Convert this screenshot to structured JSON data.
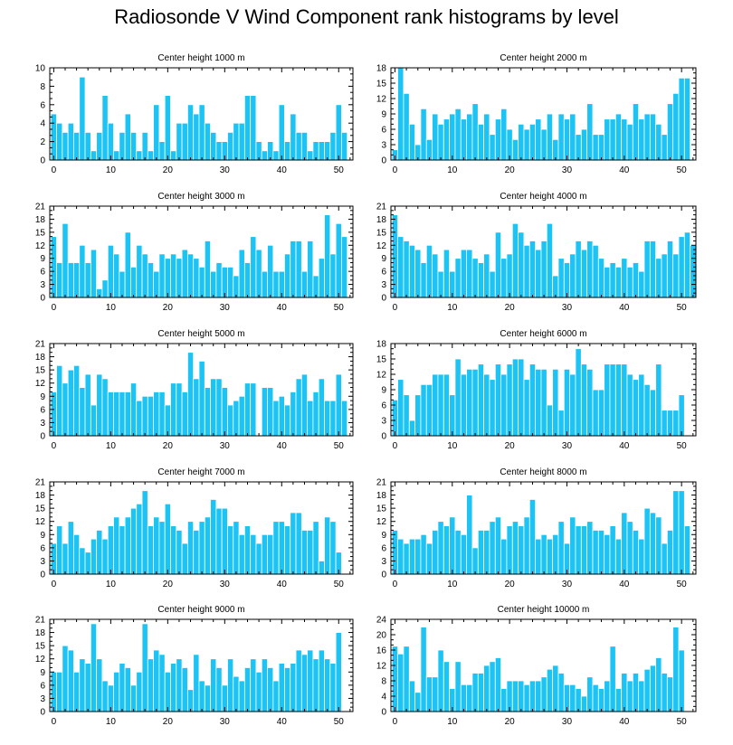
{
  "title": "Radiosonde V Wind Component rank histograms by level",
  "style": {
    "bar_color": "#1cc3f5",
    "bar_edge": "#ffffff",
    "axis_color": "#000000"
  },
  "chart_data": [
    {
      "type": "bar",
      "title": "Center height 1000 m",
      "x_ticks": [
        0,
        10,
        20,
        30,
        40,
        50
      ],
      "y_ticks": [
        0,
        2,
        4,
        6,
        8,
        10
      ],
      "ylim": [
        0,
        10
      ],
      "xlim": [
        -0.7,
        52.5
      ],
      "values": [
        5,
        4,
        3,
        4,
        3,
        9,
        3,
        1,
        3,
        7,
        4,
        1,
        3,
        5,
        3,
        1,
        3,
        1,
        6,
        2,
        7,
        1,
        4,
        4,
        6,
        5,
        6,
        4,
        3,
        2,
        2,
        3,
        4,
        4,
        7,
        7,
        2,
        1,
        2,
        1,
        6,
        2,
        5,
        3,
        3,
        1,
        2,
        2,
        2,
        3,
        6,
        3
      ]
    },
    {
      "type": "bar",
      "title": "Center height 2000 m",
      "x_ticks": [
        0,
        10,
        20,
        30,
        40,
        50
      ],
      "y_ticks": [
        0,
        3,
        6,
        9,
        12,
        15,
        18
      ],
      "ylim": [
        0,
        18
      ],
      "xlim": [
        -0.7,
        52.5
      ],
      "values": [
        2,
        18,
        13,
        7,
        3,
        10,
        4,
        9,
        7,
        8,
        9,
        10,
        8,
        9,
        11,
        7,
        9,
        5,
        8,
        10,
        6,
        4,
        7,
        6,
        7,
        8,
        6,
        9,
        4,
        9,
        8,
        9,
        5,
        6,
        11,
        5,
        5,
        8,
        8,
        9,
        8,
        7,
        11,
        8,
        9,
        9,
        7,
        5,
        11,
        13,
        16,
        16
      ]
    },
    {
      "type": "bar",
      "title": "Center height 3000 m",
      "x_ticks": [
        0,
        10,
        20,
        30,
        40,
        50
      ],
      "y_ticks": [
        0,
        3,
        6,
        9,
        12,
        15,
        18,
        21
      ],
      "ylim": [
        0,
        21
      ],
      "xlim": [
        -0.7,
        52.5
      ],
      "values": [
        14,
        8,
        17,
        8,
        8,
        12,
        8,
        11,
        2,
        4,
        12,
        10,
        6,
        15,
        7,
        12,
        10,
        8,
        6,
        10,
        9,
        10,
        9,
        11,
        10,
        9,
        7,
        13,
        6,
        8,
        7,
        7,
        5,
        11,
        8,
        14,
        11,
        6,
        12,
        6,
        6,
        10,
        13,
        13,
        6,
        13,
        5,
        9,
        19,
        10,
        17,
        14
      ]
    },
    {
      "type": "bar",
      "title": "Center height 4000 m",
      "x_ticks": [
        0,
        10,
        20,
        30,
        40,
        50
      ],
      "y_ticks": [
        0,
        3,
        6,
        9,
        12,
        15,
        18,
        21
      ],
      "ylim": [
        0,
        21
      ],
      "xlim": [
        -0.7,
        52.5
      ],
      "values": [
        19,
        14,
        13,
        12,
        11,
        8,
        12,
        10,
        6,
        11,
        6,
        9,
        11,
        11,
        9,
        8,
        10,
        6,
        15,
        9,
        10,
        17,
        15,
        12,
        13,
        11,
        13,
        17,
        5,
        9,
        8,
        10,
        13,
        11,
        13,
        12,
        9,
        7,
        8,
        7,
        9,
        7,
        8,
        6,
        13,
        13,
        9,
        10,
        13,
        10,
        14,
        15,
        12
      ]
    },
    {
      "type": "bar",
      "title": "Center height 5000 m",
      "x_ticks": [
        0,
        10,
        20,
        30,
        40,
        50
      ],
      "y_ticks": [
        0,
        3,
        6,
        9,
        12,
        15,
        18,
        21
      ],
      "ylim": [
        0,
        21
      ],
      "xlim": [
        -0.7,
        52.5
      ],
      "values": [
        10,
        16,
        12,
        15,
        16,
        11,
        14,
        7,
        14,
        13,
        10,
        10,
        10,
        10,
        12,
        8,
        9,
        9,
        10,
        10,
        7,
        12,
        12,
        10,
        19,
        13,
        17,
        11,
        13,
        13,
        11,
        7,
        8,
        9,
        12,
        12,
        0,
        11,
        11,
        8,
        9,
        7,
        10,
        13,
        14,
        8,
        10,
        13,
        8,
        8,
        14,
        8
      ]
    },
    {
      "type": "bar",
      "title": "Center height 6000 m",
      "x_ticks": [
        0,
        10,
        20,
        30,
        40,
        50
      ],
      "y_ticks": [
        0,
        3,
        6,
        9,
        12,
        15,
        18
      ],
      "ylim": [
        0,
        18
      ],
      "xlim": [
        -0.7,
        52.5
      ],
      "values": [
        7,
        11,
        8,
        3,
        8,
        10,
        10,
        12,
        12,
        12,
        8,
        15,
        12,
        13,
        13,
        14,
        12,
        11,
        14,
        12,
        14,
        15,
        15,
        11,
        14,
        13,
        13,
        6,
        13,
        5,
        13,
        12,
        17,
        14,
        13,
        9,
        9,
        14,
        14,
        14,
        14,
        12,
        11,
        12,
        10,
        9,
        14,
        5,
        5,
        5,
        8
      ]
    },
    {
      "type": "bar",
      "title": "Center height 7000 m",
      "x_ticks": [
        0,
        10,
        20,
        30,
        40,
        50
      ],
      "y_ticks": [
        0,
        3,
        6,
        9,
        12,
        15,
        18,
        21
      ],
      "ylim": [
        0,
        21
      ],
      "xlim": [
        -0.7,
        52.5
      ],
      "values": [
        7,
        11,
        7,
        12,
        9,
        6,
        5,
        8,
        10,
        8,
        11,
        13,
        11,
        13,
        15,
        16,
        19,
        11,
        13,
        12,
        16,
        11,
        10,
        7,
        12,
        10,
        12,
        13,
        17,
        15,
        15,
        11,
        12,
        9,
        11,
        9,
        7,
        9,
        9,
        12,
        12,
        11,
        14,
        14,
        10,
        10,
        12,
        3,
        13,
        12,
        5
      ]
    },
    {
      "type": "bar",
      "title": "Center height 8000 m",
      "x_ticks": [
        0,
        10,
        20,
        30,
        40,
        50
      ],
      "y_ticks": [
        0,
        3,
        6,
        9,
        12,
        15,
        18,
        21
      ],
      "ylim": [
        0,
        21
      ],
      "xlim": [
        -0.7,
        52.5
      ],
      "values": [
        10,
        8,
        7,
        8,
        8,
        9,
        7,
        10,
        12,
        11,
        13,
        10,
        9,
        18,
        6,
        10,
        10,
        12,
        13,
        8,
        11,
        12,
        11,
        13,
        17,
        8,
        9,
        8,
        9,
        12,
        7,
        13,
        11,
        11,
        12,
        10,
        10,
        9,
        11,
        8,
        14,
        12,
        10,
        8,
        15,
        14,
        13,
        7,
        10,
        19,
        19,
        11
      ]
    },
    {
      "type": "bar",
      "title": "Center height 9000 m",
      "x_ticks": [
        0,
        10,
        20,
        30,
        40,
        50
      ],
      "y_ticks": [
        0,
        3,
        6,
        9,
        12,
        15,
        18,
        21
      ],
      "ylim": [
        0,
        21
      ],
      "xlim": [
        -0.7,
        52.5
      ],
      "values": [
        9,
        9,
        15,
        14,
        9,
        12,
        11,
        20,
        12,
        7,
        6,
        9,
        11,
        10,
        6,
        9,
        20,
        12,
        14,
        13,
        9,
        11,
        12,
        10,
        5,
        13,
        7,
        6,
        12,
        10,
        6,
        12,
        8,
        7,
        10,
        12,
        9,
        12,
        10,
        7,
        11,
        10,
        11,
        14,
        13,
        14,
        12,
        14,
        12,
        11,
        18
      ]
    },
    {
      "type": "bar",
      "title": "Center height 10000 m",
      "x_ticks": [
        0,
        10,
        20,
        30,
        40,
        50
      ],
      "y_ticks": [
        0,
        4,
        8,
        12,
        16,
        20,
        24
      ],
      "ylim": [
        0,
        24
      ],
      "xlim": [
        -0.7,
        52.5
      ],
      "values": [
        17,
        15,
        17,
        8,
        5,
        22,
        9,
        9,
        16,
        13,
        6,
        13,
        7,
        7,
        10,
        10,
        12,
        13,
        14,
        6,
        8,
        8,
        8,
        7,
        8,
        8,
        9,
        11,
        12,
        10,
        7,
        7,
        6,
        4,
        9,
        7,
        6,
        8,
        17,
        6,
        10,
        8,
        10,
        8,
        11,
        12,
        14,
        10,
        9,
        22,
        16
      ]
    }
  ]
}
